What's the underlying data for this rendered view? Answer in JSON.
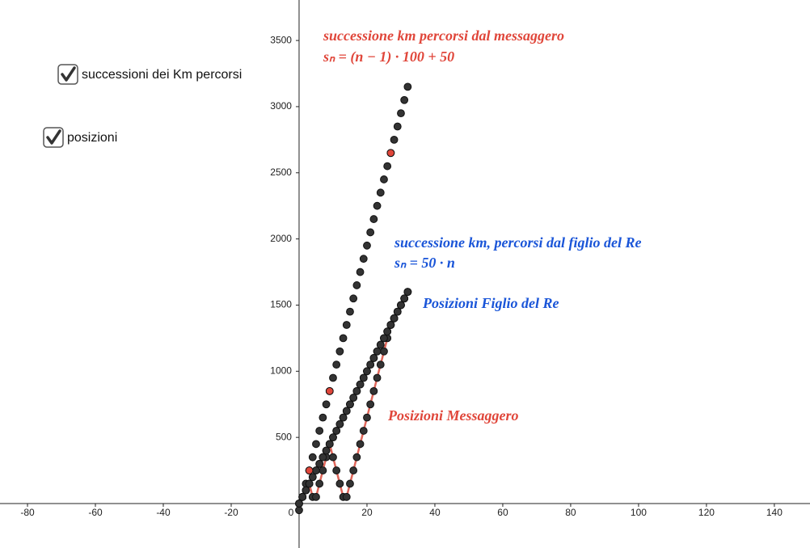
{
  "checkboxes": [
    {
      "label": "successioni dei Km percorsi",
      "checked": true
    },
    {
      "label": "posizioni",
      "checked": true
    }
  ],
  "chart_data": {
    "type": "scatter",
    "xlim": [
      -88.1,
      150.5
    ],
    "ylim": [
      -336,
      3806
    ],
    "xticks": [
      -80,
      -60,
      -40,
      -20,
      0,
      20,
      40,
      60,
      80,
      100,
      120,
      140
    ],
    "yticks": [
      500,
      1000,
      1500,
      2000,
      2500,
      3000,
      3500
    ],
    "grid": false,
    "series": [
      {
        "name": "successione km percorsi dal messaggero",
        "formula": "sₙ = (n − 1) · 100 + 50",
        "color": "#333333",
        "label_color": "#e0463a",
        "x": [
          0,
          1,
          2,
          3,
          4,
          5,
          6,
          7,
          8,
          9,
          10,
          11,
          12,
          13,
          14,
          15,
          16,
          17,
          18,
          19,
          20,
          21,
          22,
          23,
          24,
          25,
          26,
          27,
          28,
          29,
          30,
          31,
          32
        ],
        "values": [
          -50,
          50,
          150,
          250,
          350,
          450,
          550,
          650,
          750,
          850,
          950,
          1050,
          1150,
          1250,
          1350,
          1450,
          1550,
          1650,
          1750,
          1850,
          1950,
          2050,
          2150,
          2250,
          2350,
          2450,
          2550,
          2650,
          2750,
          2850,
          2950,
          3050,
          3150
        ]
      },
      {
        "name": "successione km, percorsi dal figlio del Re",
        "formula": "sₙ = 50 · n",
        "color": "#333333",
        "label_color": "#1a55d8",
        "x": [
          0,
          1,
          2,
          3,
          4,
          5,
          6,
          7,
          8,
          9,
          10,
          11,
          12,
          13,
          14,
          15,
          16,
          17,
          18,
          19,
          20,
          21,
          22,
          23,
          24,
          25,
          26,
          27,
          28,
          29,
          30,
          31,
          32
        ],
        "values": [
          0,
          50,
          100,
          150,
          200,
          250,
          300,
          350,
          400,
          450,
          500,
          550,
          600,
          650,
          700,
          750,
          800,
          850,
          900,
          950,
          1000,
          1050,
          1100,
          1150,
          1200,
          1250,
          1300,
          1350,
          1400,
          1450,
          1500,
          1550,
          1600
        ]
      },
      {
        "name": "Posizioni Messaggero",
        "color": "#333333",
        "line_color": "#e0665a",
        "label_color": "#e0463a",
        "x": [
          0,
          1,
          2,
          3,
          4,
          5,
          6,
          7,
          8,
          9,
          10,
          11,
          12,
          13,
          14,
          15,
          16,
          17,
          18,
          19,
          20,
          21,
          22,
          23,
          24,
          25,
          26,
          27,
          28,
          29,
          30,
          31,
          32
        ],
        "values": [
          0,
          50,
          100,
          150,
          50,
          50,
          150,
          250,
          350,
          450,
          350,
          250,
          150,
          50,
          50,
          150,
          250,
          350,
          450,
          550,
          650,
          750,
          850,
          950,
          1050,
          1150,
          1250,
          1350,
          1400,
          1450,
          1500,
          1550,
          1600
        ]
      },
      {
        "name": "Posizioni Figlio del Re",
        "color": "#333333",
        "label_color": "#1a55d8",
        "x": [
          0,
          1,
          2,
          3,
          4,
          5,
          6,
          7,
          8,
          9,
          10,
          11,
          12,
          13,
          14,
          15,
          16,
          17,
          18,
          19,
          20,
          21,
          22,
          23,
          24,
          25,
          26,
          27,
          28,
          29,
          30,
          31,
          32
        ],
        "values": [
          0,
          50,
          100,
          150,
          200,
          250,
          300,
          350,
          400,
          450,
          500,
          550,
          600,
          650,
          700,
          750,
          800,
          850,
          900,
          950,
          1000,
          1050,
          1100,
          1150,
          1200,
          1250,
          1300,
          1350,
          1400,
          1450,
          1500,
          1550,
          1600
        ]
      },
      {
        "color": "#e0463a",
        "x": [
          3,
          9,
          27
        ],
        "values": [
          250,
          850,
          2650
        ]
      }
    ]
  }
}
